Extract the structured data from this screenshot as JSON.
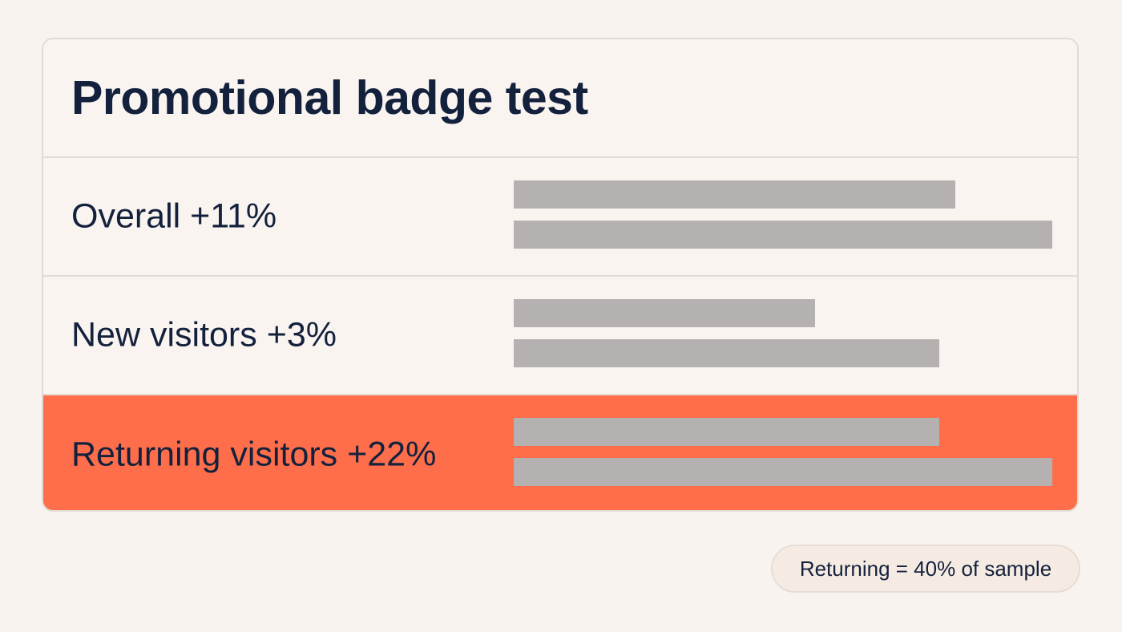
{
  "chart_data": {
    "type": "bar",
    "title": "Promotional badge test",
    "categories": [
      "Overall +11%",
      "New visitors +3%",
      "Returning visitors +22%"
    ],
    "series": [
      {
        "values": [
          0.82,
          0.56,
          0.79
        ]
      },
      {
        "values": [
          1.0,
          0.79,
          1.0
        ]
      }
    ],
    "highlight_category": "Returning visitors +22%",
    "xlim": [
      0,
      1
    ],
    "grid": false,
    "colors": {
      "bar": "#b5b1b1",
      "highlight_row": "#fe6e4a",
      "text": "#14213d",
      "background": "#f8f3ef",
      "border": "#e2dbd5"
    }
  },
  "note": "Returning = 40% of sample"
}
